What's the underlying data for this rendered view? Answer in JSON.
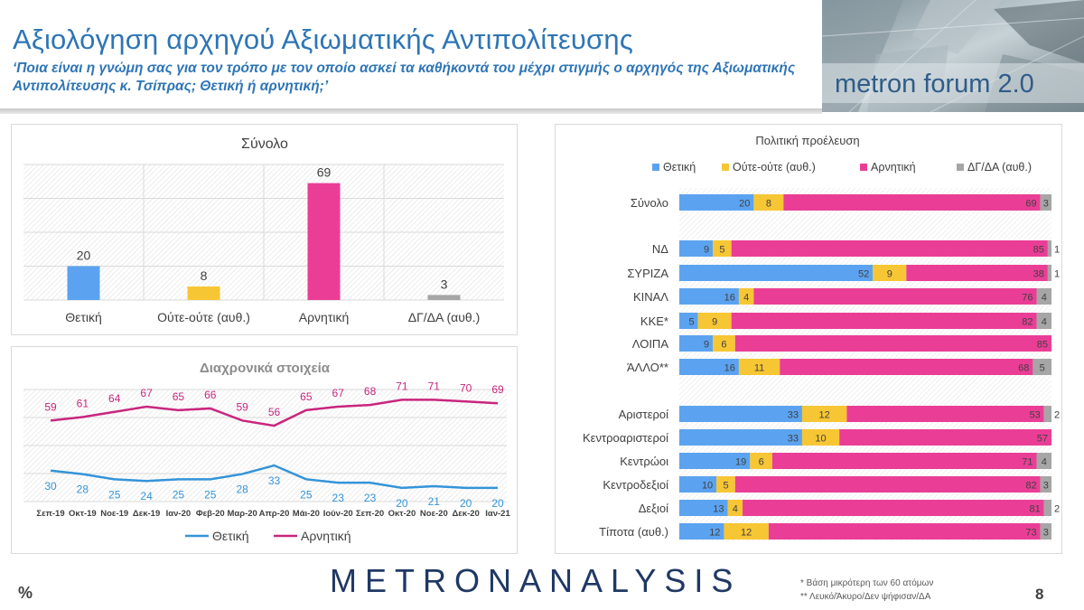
{
  "header": {
    "title": "Αξιολόγηση αρχηγού Αξιωματικής Αντιπολίτευσης",
    "subtitle": "‘Ποια είναι η γνώμη σας για τον τρόπο με τον οποίο ασκεί τα καθήκοντά του μέχρι στιγμής ο αρχηγός της Αξιωματικής Αντιπολίτευσης κ. Τσίπρας; Θετική ή αρνητική;’",
    "logo_text": "metron forum 2.0"
  },
  "colors": {
    "positive": "#5ba3f0",
    "neutral": "#f7c634",
    "negative": "#ea3e96",
    "dk": "#a6a6a6",
    "line_pos": "#3494d8",
    "line_neg": "#c8267e"
  },
  "chart_data": [
    {
      "type": "bar",
      "title": "Σύνολο",
      "categories": [
        "Θετική",
        "Ούτε-ούτε (αυθ.)",
        "Αρνητική",
        "ΔΓ/ΔΑ (αυθ.)"
      ],
      "values": [
        20,
        8,
        69,
        3
      ],
      "labels": [
        "20",
        "8",
        "69",
        "3"
      ],
      "ylim": [
        0,
        80
      ]
    },
    {
      "type": "line",
      "title": "Διαχρονικά στοιχεία",
      "x": [
        "Σεπ-19",
        "Οκτ-19",
        "Νοε-19",
        "Δεκ-19",
        "Ιαν-20",
        "Φεβ-20",
        "Μαρ-20",
        "Απρ-20",
        "Μάι-20",
        "Ιούν-20",
        "Σεπ-20",
        "Οκτ-20",
        "Νοε-20",
        "Δεκ-20",
        "Ιαν-21"
      ],
      "series": [
        {
          "name": "Θετική",
          "values": [
            30,
            28,
            25,
            24,
            25,
            25,
            28,
            33,
            25,
            23,
            23,
            20,
            21,
            20,
            20
          ],
          "labels": [
            "30",
            "28",
            "25",
            "24",
            "25",
            "25",
            "28",
            "33",
            "25",
            "23",
            "23",
            "20",
            "21",
            "20",
            "20"
          ]
        },
        {
          "name": "Αρνητική",
          "values": [
            59,
            61,
            64,
            67,
            65,
            66,
            59,
            56,
            65,
            67,
            68,
            71,
            71,
            70,
            69
          ],
          "labels": [
            "59",
            "61",
            "64",
            "67",
            "65",
            "66",
            "59",
            "56",
            "65",
            "67",
            "68",
            "71",
            "71",
            "70",
            "69"
          ]
        }
      ],
      "legend": "bottom"
    },
    {
      "type": "bar",
      "orientation": "horizontal-stacked",
      "title": "Πολιτική προέλευση",
      "series_names": [
        "Θετική",
        "Ούτε-ούτε (αυθ.)",
        "Αρνητική",
        "ΔΓ/ΔΑ (αυθ.)"
      ],
      "legend": "top",
      "rows": [
        {
          "label": "Σύνολο",
          "values": [
            20,
            8,
            69,
            3
          ],
          "labels": [
            "20",
            "8",
            "69",
            "3"
          ]
        },
        {
          "label": "ΝΔ",
          "values": [
            9,
            5,
            85,
            1
          ],
          "labels": [
            "9",
            "5",
            "85",
            "1"
          ]
        },
        {
          "label": "ΣΥΡΙΖΑ",
          "values": [
            52,
            9,
            38,
            1
          ],
          "labels": [
            "52",
            "9",
            "38",
            "1"
          ]
        },
        {
          "label": "ΚΙΝΑΛ",
          "values": [
            16,
            4,
            76,
            4
          ],
          "labels": [
            "16",
            "4",
            "76",
            "4"
          ]
        },
        {
          "label": "ΚΚΕ*",
          "values": [
            5,
            9,
            82,
            4
          ],
          "labels": [
            "5",
            "9",
            "82",
            "4"
          ]
        },
        {
          "label": "ΛΟΙΠΑ",
          "values": [
            9,
            6,
            85,
            0
          ],
          "labels": [
            "9",
            "6",
            "85",
            ""
          ]
        },
        {
          "label": "ΆΛΛΟ**",
          "values": [
            16,
            11,
            68,
            5
          ],
          "labels": [
            "16",
            "11",
            "68",
            "5"
          ]
        },
        {
          "label": "Αριστεροί",
          "values": [
            33,
            12,
            53,
            2
          ],
          "labels": [
            "33",
            "12",
            "53",
            "2"
          ]
        },
        {
          "label": "Κεντροαριστεροί",
          "values": [
            33,
            10,
            57,
            0
          ],
          "labels": [
            "33",
            "10",
            "57",
            ""
          ]
        },
        {
          "label": "Κεντρώοι",
          "values": [
            19,
            6,
            71,
            4
          ],
          "labels": [
            "19",
            "6",
            "71",
            "4"
          ]
        },
        {
          "label": "Κεντροδεξιοί",
          "values": [
            10,
            5,
            82,
            3
          ],
          "labels": [
            "10",
            "5",
            "82",
            "3"
          ]
        },
        {
          "label": "Δεξιοί",
          "values": [
            13,
            4,
            81,
            2
          ],
          "labels": [
            "13",
            "4",
            "81",
            "2"
          ]
        },
        {
          "label": "Τίποτα (αυθ.)",
          "values": [
            12,
            12,
            73,
            3
          ],
          "labels": [
            "12",
            "12",
            "73",
            "3"
          ]
        }
      ]
    }
  ],
  "footer": {
    "percent_sign": "%",
    "brand_part1": "METRON",
    "brand_part2": "ANALYSIS",
    "note1": "* Βάση μικρότερη των 60 ατόμων",
    "note2": "** Λευκό/Άκυρο/Δεν ψήφισαν/ΔΑ",
    "page_number": "8"
  }
}
